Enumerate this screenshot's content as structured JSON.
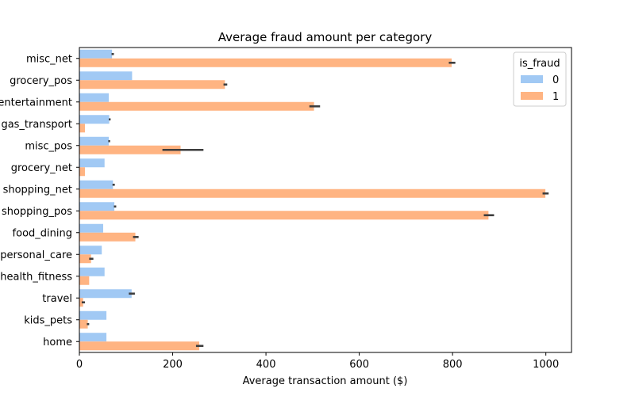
{
  "chart_data": {
    "type": "bar",
    "orientation": "horizontal",
    "title": "Average fraud amount per category",
    "xlabel": "Average transaction amount ($)",
    "ylabel": "",
    "xlim": [
      0,
      1055
    ],
    "xticks": [
      0,
      200,
      400,
      600,
      800,
      1000
    ],
    "grid": false,
    "categories": [
      "misc_net",
      "grocery_pos",
      "entertainment",
      "gas_transport",
      "misc_pos",
      "grocery_net",
      "shopping_net",
      "shopping_pos",
      "food_dining",
      "personal_care",
      "health_fitness",
      "travel",
      "kids_pets",
      "home"
    ],
    "legend": {
      "title": "is_fraud",
      "position": "top-right"
    },
    "series": [
      {
        "name": "0",
        "color": "#a1c9f4",
        "values": [
          70,
          113,
          63,
          64,
          63,
          54,
          72,
          75,
          51,
          48,
          54,
          112,
          58,
          58
        ],
        "ci": [
          [
            69,
            74
          ],
          [
            null,
            null
          ],
          [
            null,
            null
          ],
          [
            63,
            67
          ],
          [
            62,
            66
          ],
          [
            null,
            null
          ],
          [
            71,
            76
          ],
          [
            74,
            79
          ],
          [
            null,
            null
          ],
          [
            null,
            null
          ],
          [
            null,
            null
          ],
          [
            106,
            119
          ],
          [
            null,
            null
          ],
          [
            null,
            null
          ]
        ]
      },
      {
        "name": "1",
        "color": "#ffb482",
        "values": [
          798,
          312,
          503,
          12,
          217,
          12,
          999,
          877,
          120,
          25,
          21,
          8,
          18,
          257
        ],
        "ci": [
          [
            792,
            806
          ],
          [
            309,
            317
          ],
          [
            493,
            516
          ],
          [
            null,
            null
          ],
          [
            178,
            266
          ],
          [
            null,
            null
          ],
          [
            993,
            1006
          ],
          [
            867,
            889
          ],
          [
            115,
            127
          ],
          [
            21,
            30
          ],
          [
            null,
            null
          ],
          [
            5,
            12
          ],
          [
            16,
            21
          ],
          [
            250,
            266
          ]
        ]
      }
    ]
  }
}
